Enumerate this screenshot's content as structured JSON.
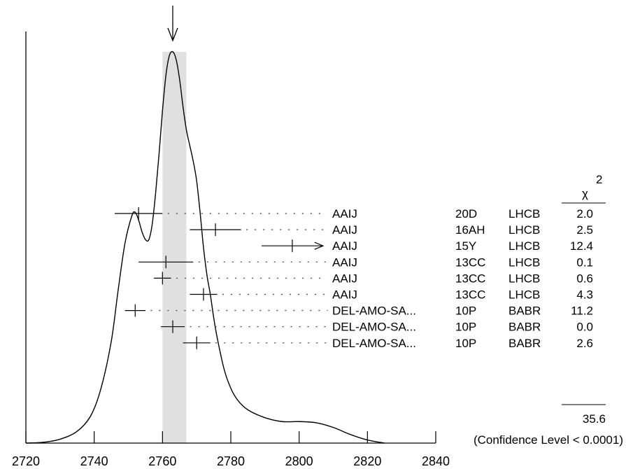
{
  "chart_data": {
    "type": "ideogram",
    "title": "",
    "xlim": [
      2720,
      2840
    ],
    "xticks": [
      2720,
      2740,
      2760,
      2780,
      2800,
      2820,
      2840
    ],
    "chi2_header": "χ",
    "chi2_header_sup": "2",
    "band": {
      "center": 2763,
      "low": 2760,
      "high": 2767
    },
    "arrow_value": 2763,
    "measurements": [
      {
        "author": "AAIJ",
        "doc": "20D",
        "tecn": "LHCB",
        "value": 2753.0,
        "err": 7,
        "chi2": "2.0"
      },
      {
        "author": "AAIJ",
        "doc": "16AH",
        "tecn": "LHCB",
        "value": 2775.5,
        "err": 7.5,
        "chi2": "2.5"
      },
      {
        "author": "AAIJ",
        "doc": "15Y",
        "tecn": "LHCB",
        "value": 2798,
        "err": 9,
        "chi2": "12.4",
        "offscale": true
      },
      {
        "author": "AAIJ",
        "doc": "13CC",
        "tecn": "LHCB",
        "value": 2761,
        "err": 8,
        "chi2": "0.1"
      },
      {
        "author": "AAIJ",
        "doc": "13CC",
        "tecn": "LHCB",
        "value": 2760,
        "err": 2.5,
        "chi2": "0.6"
      },
      {
        "author": "AAIJ",
        "doc": "13CC",
        "tecn": "LHCB",
        "value": 2772,
        "err": 4,
        "chi2": "4.3"
      },
      {
        "author": "DEL-AMO-SA...",
        "doc": "10P",
        "tecn": "BABR",
        "value": 2752,
        "err": 3,
        "chi2": "11.2"
      },
      {
        "author": "DEL-AMO-SA...",
        "doc": "10P",
        "tecn": "BABR",
        "value": 2763,
        "err": 3.5,
        "chi2": "0.0"
      },
      {
        "author": "DEL-AMO-SA...",
        "doc": "10P",
        "tecn": "BABR",
        "value": 2770,
        "err": 4,
        "chi2": "2.6"
      }
    ],
    "chi2_total": "35.6",
    "confidence_note": "(Confidence Level < 0.0001)",
    "curve": {
      "x": [
        2720,
        2725,
        2730,
        2735,
        2739,
        2742,
        2745,
        2747,
        2749,
        2751,
        2752,
        2753,
        2754,
        2755,
        2756,
        2757,
        2758,
        2759,
        2760,
        2761,
        2762,
        2763,
        2764,
        2765,
        2766,
        2767,
        2768,
        2769,
        2770,
        2771,
        2772,
        2773,
        2774,
        2775,
        2776,
        2778,
        2780,
        2782,
        2785,
        2790,
        2795,
        2800,
        2805,
        2810,
        2815,
        2820,
        2825
      ],
      "y": [
        0.0,
        0.002,
        0.01,
        0.03,
        0.07,
        0.14,
        0.26,
        0.39,
        0.51,
        0.58,
        0.59,
        0.57,
        0.54,
        0.52,
        0.52,
        0.56,
        0.64,
        0.74,
        0.85,
        0.94,
        0.99,
        1.0,
        0.98,
        0.93,
        0.86,
        0.8,
        0.76,
        0.72,
        0.67,
        0.59,
        0.5,
        0.43,
        0.38,
        0.32,
        0.27,
        0.19,
        0.14,
        0.11,
        0.085,
        0.065,
        0.055,
        0.055,
        0.052,
        0.04,
        0.022,
        0.008,
        0.0
      ]
    }
  }
}
